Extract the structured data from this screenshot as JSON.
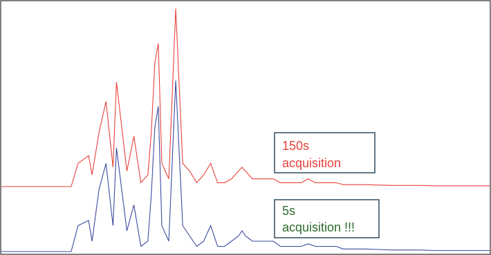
{
  "chart_data": {
    "type": "line",
    "title": "",
    "xlabel": "",
    "ylabel": "",
    "grid": false,
    "axes_visible": false,
    "x": [
      0,
      20,
      40,
      60,
      80,
      100,
      110,
      125,
      130,
      140,
      150,
      160,
      165,
      180,
      190,
      200,
      210,
      215,
      220,
      225,
      230,
      240,
      250,
      260,
      270,
      280,
      290,
      300,
      310,
      320,
      330,
      340,
      345,
      350,
      360,
      370,
      380,
      390,
      400,
      410,
      420,
      430,
      440,
      450,
      460,
      470,
      480,
      490,
      500,
      520,
      540,
      560,
      580,
      600,
      620,
      640,
      660,
      680,
      700
    ],
    "series": [
      {
        "color": "#e8413c",
        "label_lines": [
          "150s",
          "acquisition"
        ],
        "values": [
          0.0,
          0.0,
          0.0,
          0.0,
          0.0,
          0.0,
          0.6,
          0.8,
          0.3,
          1.4,
          2.2,
          0.5,
          2.7,
          0.4,
          1.3,
          0.1,
          0.3,
          1.4,
          3.2,
          3.7,
          0.6,
          0.2,
          4.6,
          0.6,
          0.4,
          0.1,
          0.3,
          0.6,
          0.1,
          0.1,
          0.2,
          0.4,
          0.5,
          0.4,
          0.2,
          0.2,
          0.2,
          0.2,
          0.1,
          0.1,
          0.1,
          0.1,
          0.2,
          0.1,
          0.1,
          0.1,
          0.1,
          0.05,
          0.05,
          0.05,
          0.04,
          0.03,
          0.03,
          0.03,
          0.02,
          0.02,
          0.02,
          0.02,
          0.02
        ]
      },
      {
        "color": "#3b4aa0",
        "label_lines": [
          "5s",
          "acquisition  !!!"
        ],
        "values": [
          0.0,
          0.0,
          0.0,
          0.0,
          0.0,
          0.0,
          0.5,
          0.6,
          0.2,
          1.2,
          1.7,
          0.5,
          2.0,
          0.4,
          0.9,
          0.1,
          0.2,
          1.1,
          2.4,
          2.8,
          0.5,
          0.2,
          3.3,
          0.5,
          0.3,
          0.1,
          0.2,
          0.5,
          0.1,
          0.1,
          0.2,
          0.3,
          0.4,
          0.3,
          0.2,
          0.2,
          0.2,
          0.2,
          0.1,
          0.1,
          0.1,
          0.1,
          0.15,
          0.1,
          0.1,
          0.1,
          0.1,
          0.05,
          0.05,
          0.05,
          0.04,
          0.03,
          0.03,
          0.03,
          0.02,
          0.02,
          0.02,
          0.02,
          0.02
        ]
      }
    ]
  }
}
